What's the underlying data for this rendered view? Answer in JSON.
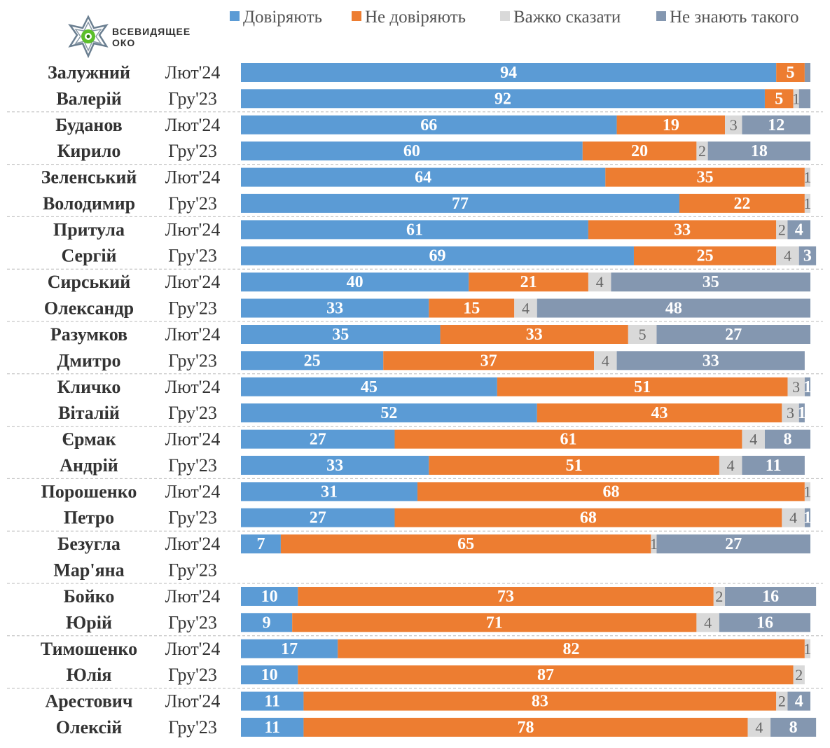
{
  "logo": {
    "line1": "ВСЕВИДЯЩЕЕ",
    "line2": "ОКО"
  },
  "chart_data": {
    "type": "bar",
    "orientation": "horizontal",
    "stacked": true,
    "legend_position": "top-right",
    "series": [
      {
        "name": "Довіряють",
        "color": "#5b9bd5"
      },
      {
        "name": "Не довіряють",
        "color": "#ed7d31"
      },
      {
        "name": "Важко сказати",
        "color": "#d9d9d9"
      },
      {
        "name": "Не знають такого",
        "color": "#8497b0"
      }
    ],
    "groups": [
      {
        "name": [
          "Залужний",
          "Валерій"
        ],
        "rows": [
          {
            "period": "Лют'24",
            "values": [
              94,
              5,
              0,
              1
            ],
            "labels": [
              "94",
              "5",
              "",
              ""
            ]
          },
          {
            "period": "Гру'23",
            "values": [
              92,
              5,
              1,
              2
            ],
            "labels": [
              "92",
              "5",
              "1",
              ""
            ]
          }
        ]
      },
      {
        "name": [
          "Буданов",
          "Кирило"
        ],
        "rows": [
          {
            "period": "Лют'24",
            "values": [
              66,
              19,
              3,
              12
            ],
            "labels": [
              "66",
              "19",
              "3",
              "12"
            ]
          },
          {
            "period": "Гру'23",
            "values": [
              60,
              20,
              2,
              18
            ],
            "labels": [
              "60",
              "20",
              "2",
              "18"
            ]
          }
        ]
      },
      {
        "name": [
          "Зеленський",
          "Володимир"
        ],
        "rows": [
          {
            "period": "Лют'24",
            "values": [
              64,
              35,
              1,
              0
            ],
            "labels": [
              "64",
              "35",
              "1",
              ""
            ]
          },
          {
            "period": "Гру'23",
            "values": [
              77,
              22,
              1,
              0
            ],
            "labels": [
              "77",
              "22",
              "1",
              ""
            ]
          }
        ]
      },
      {
        "name": [
          "Притула",
          "Сергій"
        ],
        "rows": [
          {
            "period": "Лют'24",
            "values": [
              61,
              33,
              2,
              4
            ],
            "labels": [
              "61",
              "33",
              "2",
              "4"
            ]
          },
          {
            "period": "Гру'23",
            "values": [
              69,
              25,
              4,
              3
            ],
            "labels": [
              "69",
              "25",
              "4",
              "3"
            ]
          }
        ]
      },
      {
        "name": [
          "Сирський",
          "Олександр"
        ],
        "rows": [
          {
            "period": "Лют'24",
            "values": [
              40,
              21,
              4,
              35
            ],
            "labels": [
              "40",
              "21",
              "4",
              "35"
            ]
          },
          {
            "period": "Гру'23",
            "values": [
              33,
              15,
              4,
              48
            ],
            "labels": [
              "33",
              "15",
              "4",
              "48"
            ]
          }
        ]
      },
      {
        "name": [
          "Разумков",
          "Дмитро"
        ],
        "rows": [
          {
            "period": "Лют'24",
            "values": [
              35,
              33,
              5,
              27
            ],
            "labels": [
              "35",
              "33",
              "5",
              "27"
            ]
          },
          {
            "period": "Гру'23",
            "values": [
              25,
              37,
              4,
              33
            ],
            "labels": [
              "25",
              "37",
              "4",
              "33"
            ]
          }
        ]
      },
      {
        "name": [
          "Кличко",
          "Віталій"
        ],
        "rows": [
          {
            "period": "Лют'24",
            "values": [
              45,
              51,
              3,
              1
            ],
            "labels": [
              "45",
              "51",
              "3",
              "1"
            ]
          },
          {
            "period": "Гру'23",
            "values": [
              52,
              43,
              3,
              1
            ],
            "labels": [
              "52",
              "43",
              "3",
              "1"
            ]
          }
        ]
      },
      {
        "name": [
          "Єрмак",
          "Андрій"
        ],
        "rows": [
          {
            "period": "Лют'24",
            "values": [
              27,
              61,
              4,
              8
            ],
            "labels": [
              "27",
              "61",
              "4",
              "8"
            ]
          },
          {
            "period": "Гру'23",
            "values": [
              33,
              51,
              4,
              11
            ],
            "labels": [
              "33",
              "51",
              "4",
              "11"
            ]
          }
        ]
      },
      {
        "name": [
          "Порошенко",
          "Петро"
        ],
        "rows": [
          {
            "period": "Лют'24",
            "values": [
              31,
              68,
              1,
              0
            ],
            "labels": [
              "31",
              "68",
              "1",
              ""
            ]
          },
          {
            "period": "Гру'23",
            "values": [
              27,
              68,
              4,
              1
            ],
            "labels": [
              "27",
              "68",
              "4",
              "1"
            ]
          }
        ]
      },
      {
        "name": [
          "Безугла",
          "Мар'яна"
        ],
        "rows": [
          {
            "period": "Лют'24",
            "values": [
              7,
              65,
              1,
              27
            ],
            "labels": [
              "7",
              "65",
              "1",
              "27"
            ]
          },
          {
            "period": "Гру'23",
            "values": [
              0,
              0,
              0,
              0
            ],
            "labels": [
              "",
              "",
              "",
              ""
            ]
          }
        ]
      },
      {
        "name": [
          "Бойко",
          "Юрій"
        ],
        "rows": [
          {
            "period": "Лют'24",
            "values": [
              10,
              73,
              2,
              16
            ],
            "labels": [
              "10",
              "73",
              "2",
              "16"
            ]
          },
          {
            "period": "Гру'23",
            "values": [
              9,
              71,
              4,
              16
            ],
            "labels": [
              "9",
              "71",
              "4",
              "16"
            ]
          }
        ]
      },
      {
        "name": [
          "Тимошенко",
          "Юлія"
        ],
        "rows": [
          {
            "period": "Лют'24",
            "values": [
              17,
              82,
              1,
              0
            ],
            "labels": [
              "17",
              "82",
              "1",
              ""
            ]
          },
          {
            "period": "Гру'23",
            "values": [
              10,
              87,
              2,
              0
            ],
            "labels": [
              "10",
              "87",
              "2",
              ""
            ]
          }
        ]
      },
      {
        "name": [
          "Арестович",
          "Олексій"
        ],
        "rows": [
          {
            "period": "Лют'24",
            "values": [
              11,
              83,
              2,
              4
            ],
            "labels": [
              "11",
              "83",
              "2",
              "4"
            ]
          },
          {
            "period": "Гру'23",
            "values": [
              11,
              78,
              4,
              8
            ],
            "labels": [
              "11",
              "78",
              "4",
              "8"
            ]
          }
        ]
      }
    ]
  }
}
